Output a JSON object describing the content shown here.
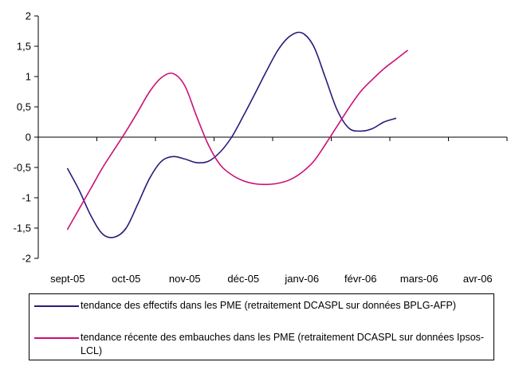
{
  "chart_data": {
    "type": "line",
    "title": "",
    "xlabel": "",
    "ylabel": "",
    "categories": [
      "sept-05",
      "oct-05",
      "nov-05",
      "déc-05",
      "janv-06",
      "févr-06",
      "mars-06",
      "avr-06"
    ],
    "ylim": [
      -2,
      2
    ],
    "yticks": [
      2,
      1.5,
      1,
      0.5,
      0,
      -0.5,
      -1,
      -1.5,
      -2
    ],
    "ytick_labels": [
      "2",
      "1,5",
      "1",
      "0,5",
      "0",
      "-0,5",
      "-1",
      "-1,5",
      "-2"
    ],
    "grid": false,
    "legend_placement": "bottom",
    "series": [
      {
        "name": "tendance des effectifs dans les PME (retraitement DCASPL sur données BPLG-AFP)",
        "color": "#2e1a7a",
        "points": [
          [
            0.0,
            -0.52
          ],
          [
            0.2,
            -0.88
          ],
          [
            0.4,
            -1.3
          ],
          [
            0.6,
            -1.6
          ],
          [
            0.8,
            -1.65
          ],
          [
            1.0,
            -1.5
          ],
          [
            1.2,
            -1.1
          ],
          [
            1.4,
            -0.68
          ],
          [
            1.6,
            -0.4
          ],
          [
            1.8,
            -0.32
          ],
          [
            2.0,
            -0.36
          ],
          [
            2.2,
            -0.42
          ],
          [
            2.4,
            -0.4
          ],
          [
            2.6,
            -0.25
          ],
          [
            2.8,
            0.0
          ],
          [
            3.0,
            0.35
          ],
          [
            3.2,
            0.72
          ],
          [
            3.4,
            1.1
          ],
          [
            3.6,
            1.45
          ],
          [
            3.8,
            1.67
          ],
          [
            4.0,
            1.72
          ],
          [
            4.2,
            1.5
          ],
          [
            4.4,
            0.98
          ],
          [
            4.6,
            0.45
          ],
          [
            4.8,
            0.15
          ],
          [
            5.0,
            0.1
          ],
          [
            5.2,
            0.14
          ],
          [
            5.4,
            0.25
          ],
          [
            5.6,
            0.31
          ]
        ]
      },
      {
        "name": "tendance récente des embauches dans les PME (retraitement DCASPL sur données Ipsos-LCL)",
        "color": "#cc1177",
        "points": [
          [
            0.0,
            -1.52
          ],
          [
            0.2,
            -1.18
          ],
          [
            0.4,
            -0.84
          ],
          [
            0.6,
            -0.5
          ],
          [
            0.8,
            -0.2
          ],
          [
            1.0,
            0.1
          ],
          [
            1.2,
            0.42
          ],
          [
            1.4,
            0.75
          ],
          [
            1.6,
            0.98
          ],
          [
            1.8,
            1.05
          ],
          [
            2.0,
            0.85
          ],
          [
            2.2,
            0.35
          ],
          [
            2.4,
            -0.12
          ],
          [
            2.6,
            -0.45
          ],
          [
            2.8,
            -0.62
          ],
          [
            3.0,
            -0.72
          ],
          [
            3.2,
            -0.77
          ],
          [
            3.4,
            -0.78
          ],
          [
            3.6,
            -0.76
          ],
          [
            3.8,
            -0.7
          ],
          [
            4.0,
            -0.58
          ],
          [
            4.2,
            -0.4
          ],
          [
            4.4,
            -0.12
          ],
          [
            4.6,
            0.18
          ],
          [
            4.8,
            0.48
          ],
          [
            5.0,
            0.75
          ],
          [
            5.2,
            0.95
          ],
          [
            5.4,
            1.13
          ],
          [
            5.6,
            1.28
          ],
          [
            5.8,
            1.43
          ]
        ]
      }
    ]
  }
}
